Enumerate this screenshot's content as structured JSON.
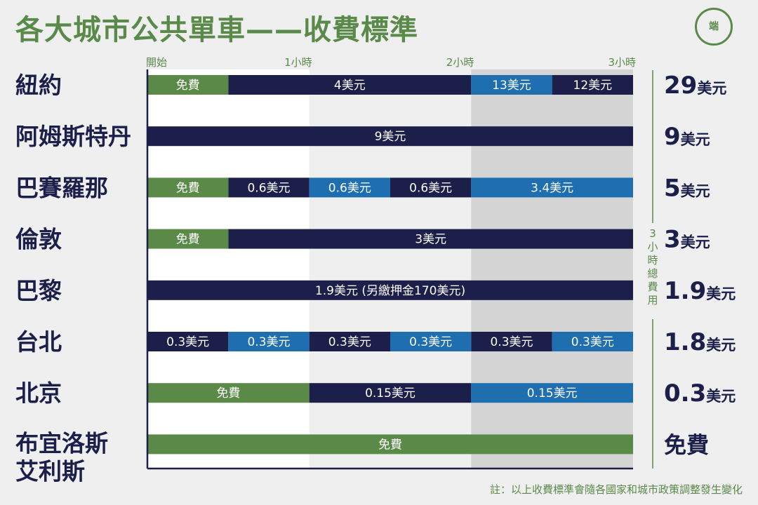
{
  "title": "各大城市公共單車——收費標準",
  "logo_text": "端",
  "note": "註：以上收費標準會隨各國家和城市政策調整發生變化",
  "total_axis_label": "3小時總費用",
  "colors": {
    "green": "#5b8a48",
    "navy": "#1b1f4a",
    "blue": "#1f6fb0",
    "title_green": "#5a8a4a",
    "bg_white": "#ffffff",
    "bg_light": "#efefef",
    "bg_mid": "#d4d4d4"
  },
  "chart_data": {
    "type": "bar",
    "orientation": "horizontal-segmented-timeline",
    "x_ticks": [
      {
        "value": 0,
        "label": "開始"
      },
      {
        "value": 60,
        "label": "1小時"
      },
      {
        "value": 120,
        "label": "2小時"
      },
      {
        "value": 180,
        "label": "3小時"
      }
    ],
    "xlim": [
      0,
      180
    ],
    "x_unit": "minutes",
    "rows": [
      {
        "city": "紐約",
        "total_num": "29",
        "total_unit": "美元",
        "segments": [
          {
            "start": 0,
            "end": 30,
            "label": "免費",
            "color": "green"
          },
          {
            "start": 30,
            "end": 120,
            "label": "4美元",
            "color": "navy"
          },
          {
            "start": 120,
            "end": 150,
            "label": "13美元",
            "color": "blue"
          },
          {
            "start": 150,
            "end": 180,
            "label": "12美元",
            "color": "navy"
          }
        ]
      },
      {
        "city": "阿姆斯特丹",
        "total_num": "9",
        "total_unit": "美元",
        "segments": [
          {
            "start": 0,
            "end": 180,
            "label": "9美元",
            "color": "navy"
          }
        ]
      },
      {
        "city": "巴賽羅那",
        "total_num": "5",
        "total_unit": "美元",
        "segments": [
          {
            "start": 0,
            "end": 30,
            "label": "免費",
            "color": "green"
          },
          {
            "start": 30,
            "end": 60,
            "label": "0.6美元",
            "color": "navy"
          },
          {
            "start": 60,
            "end": 90,
            "label": "0.6美元",
            "color": "blue"
          },
          {
            "start": 90,
            "end": 120,
            "label": "0.6美元",
            "color": "navy"
          },
          {
            "start": 120,
            "end": 180,
            "label": "3.4美元",
            "color": "blue"
          }
        ]
      },
      {
        "city": "倫敦",
        "total_num": "3",
        "total_unit": "美元",
        "segments": [
          {
            "start": 0,
            "end": 30,
            "label": "免費",
            "color": "green"
          },
          {
            "start": 30,
            "end": 180,
            "label": "3美元",
            "color": "navy"
          }
        ]
      },
      {
        "city": "巴黎",
        "total_num": "1.9",
        "total_unit": "美元",
        "segments": [
          {
            "start": 0,
            "end": 180,
            "label": "1.9美元 (另繳押金170美元)",
            "color": "navy"
          }
        ]
      },
      {
        "city": "台北",
        "total_num": "1.8",
        "total_unit": "美元",
        "segments": [
          {
            "start": 0,
            "end": 30,
            "label": "0.3美元",
            "color": "navy"
          },
          {
            "start": 30,
            "end": 60,
            "label": "0.3美元",
            "color": "blue"
          },
          {
            "start": 60,
            "end": 90,
            "label": "0.3美元",
            "color": "navy"
          },
          {
            "start": 90,
            "end": 120,
            "label": "0.3美元",
            "color": "blue"
          },
          {
            "start": 120,
            "end": 150,
            "label": "0.3美元",
            "color": "navy"
          },
          {
            "start": 150,
            "end": 180,
            "label": "0.3美元",
            "color": "blue"
          }
        ]
      },
      {
        "city": "北京",
        "total_num": "0.3",
        "total_unit": "美元",
        "segments": [
          {
            "start": 0,
            "end": 60,
            "label": "免費",
            "color": "green"
          },
          {
            "start": 60,
            "end": 120,
            "label": "0.15美元",
            "color": "navy"
          },
          {
            "start": 120,
            "end": 180,
            "label": "0.15美元",
            "color": "blue"
          }
        ]
      },
      {
        "city": "布宜洛斯艾利斯",
        "city_lines": [
          "布宜洛斯",
          "艾利斯"
        ],
        "total_num": "",
        "total_unit": "免費",
        "segments": [
          {
            "start": 0,
            "end": 180,
            "label": "免費",
            "color": "green"
          }
        ]
      }
    ],
    "grid": true,
    "legend": "none"
  }
}
